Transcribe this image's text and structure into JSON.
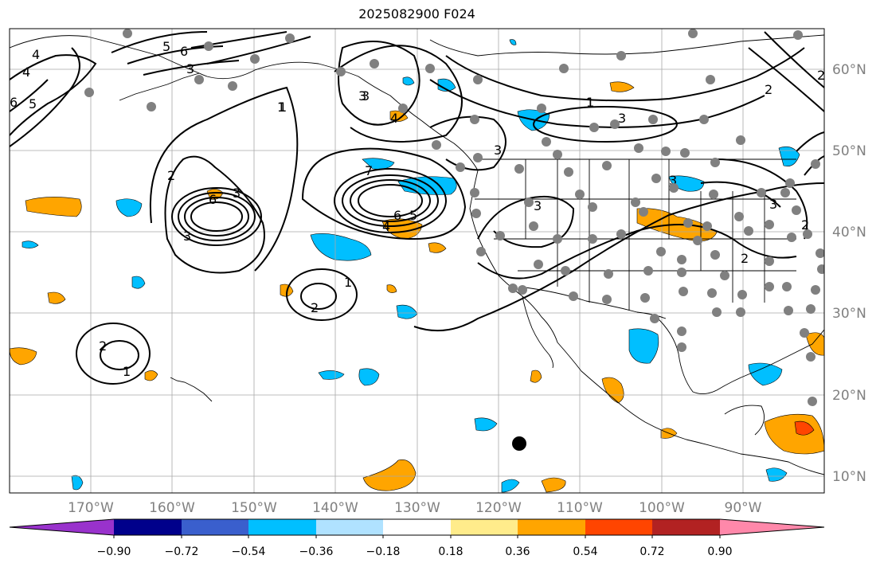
{
  "title": "2025082900 F024",
  "longitude_labels": [
    "170°W",
    "160°W",
    "150°W",
    "140°W",
    "130°W",
    "120°W",
    "110°W",
    "100°W",
    "90°W"
  ],
  "latitude_labels": [
    "60°N",
    "50°N",
    "40°N",
    "30°N",
    "20°N",
    "10°N"
  ],
  "colorbar": {
    "tick_labels": [
      "−0.90",
      "−0.72",
      "−0.54",
      "−0.36",
      "−0.18",
      "0.18",
      "0.36",
      "0.54",
      "0.72",
      "0.90"
    ],
    "colors": [
      "#9932cc",
      "#00008b",
      "#3a5fcd",
      "#00bfff",
      "#b0e2ff",
      "#ffffff",
      "#ffec8b",
      "#ffa500",
      "#ff4500",
      "#b22222",
      "#ff88aa"
    ]
  },
  "contour_labels": [
    "4",
    "4",
    "6",
    "5",
    "3",
    "6",
    "5",
    "1",
    "3",
    "3",
    "2",
    "3",
    "6",
    "4",
    "5",
    "6",
    "7",
    "3",
    "4",
    "1",
    "3",
    "3",
    "3",
    "1",
    "2",
    "1",
    "2",
    "2",
    "2",
    "3",
    "2",
    "2",
    "1",
    "3",
    "1"
  ],
  "station_marker": "storm-center-dot"
}
